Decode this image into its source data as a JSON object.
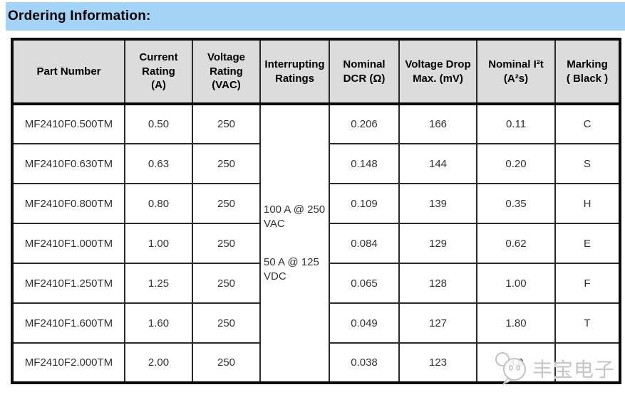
{
  "title": "Ordering Information:",
  "colors": {
    "title_bar_bg": "#a4d3f8",
    "header_bg": "#dcdcdc",
    "border": "#0a0a0a",
    "watermark": "#c6c6c6"
  },
  "table": {
    "columns": [
      {
        "key": "part",
        "label": "Part Number",
        "lines": [
          "Part Number"
        ]
      },
      {
        "key": "current",
        "label": "Current Rating (A)",
        "lines": [
          "Current",
          "Rating",
          "(A)"
        ]
      },
      {
        "key": "voltage",
        "label": "Voltage Rating (VAC)",
        "lines": [
          "Voltage",
          "Rating",
          "(VAC)"
        ]
      },
      {
        "key": "interrupting",
        "label": "Interrupting Ratings",
        "lines": [
          "Interrupting",
          "Ratings"
        ]
      },
      {
        "key": "dcr",
        "label": "Nominal DCR (Ω)",
        "lines": [
          "Nominal",
          "DCR (Ω)"
        ]
      },
      {
        "key": "vdrop",
        "label": "Voltage Drop Max. (mV)",
        "lines": [
          "Voltage Drop",
          "Max. (mV)"
        ]
      },
      {
        "key": "i2t",
        "label": "Nominal I²t (A²s)",
        "lines": [
          "Nominal I²t",
          "(A²s)"
        ]
      },
      {
        "key": "marking",
        "label": "Marking ( Black )",
        "lines": [
          "Marking",
          "( Black )"
        ]
      }
    ],
    "interrupting_ratings": [
      "100 A @ 250 VAC",
      "50 A @ 125 VDC"
    ],
    "rows": [
      {
        "part": "MF2410F0.500TM",
        "current": "0.50",
        "voltage": "250",
        "dcr": "0.206",
        "vdrop": "166",
        "i2t": "0.11",
        "marking": "C"
      },
      {
        "part": "MF2410F0.630TM",
        "current": "0.63",
        "voltage": "250",
        "dcr": "0.148",
        "vdrop": "144",
        "i2t": "0.20",
        "marking": "S"
      },
      {
        "part": "MF2410F0.800TM",
        "current": "0.80",
        "voltage": "250",
        "dcr": "0.109",
        "vdrop": "139",
        "i2t": "0.35",
        "marking": "H"
      },
      {
        "part": "MF2410F1.000TM",
        "current": "1.00",
        "voltage": "250",
        "dcr": "0.084",
        "vdrop": "129",
        "i2t": "0.62",
        "marking": "E"
      },
      {
        "part": "MF2410F1.250TM",
        "current": "1.25",
        "voltage": "250",
        "dcr": "0.065",
        "vdrop": "128",
        "i2t": "1.00",
        "marking": "F"
      },
      {
        "part": "MF2410F1.600TM",
        "current": "1.60",
        "voltage": "250",
        "dcr": "0.049",
        "vdrop": "127",
        "i2t": "1.80",
        "marking": "T"
      },
      {
        "part": "MF2410F2.000TM",
        "current": "2.00",
        "voltage": "250",
        "dcr": "0.038",
        "vdrop": "123",
        "i2t": "3.0",
        "marking": ""
      }
    ]
  },
  "watermark": {
    "icon": "chat-face-icon",
    "text": "丰宝电子"
  }
}
